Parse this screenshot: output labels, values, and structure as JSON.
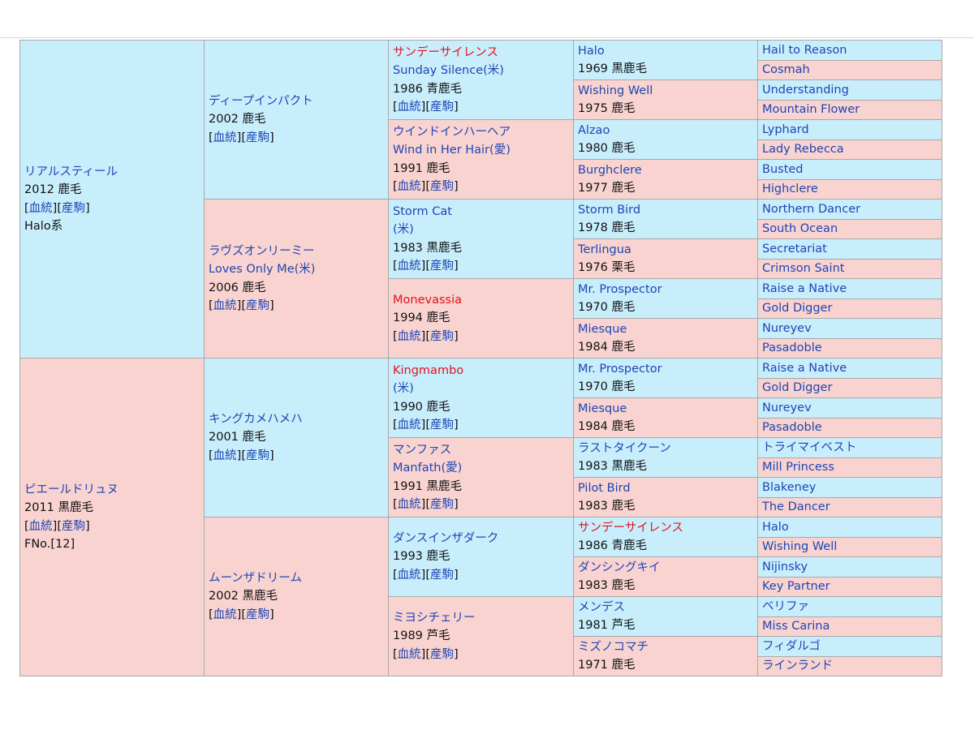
{
  "horse": {
    "sire": {
      "name": "リアルスティール",
      "year": "2012",
      "color": "鹿毛",
      "lineage": "血統",
      "offspring": "産駒",
      "line": "Halo系",
      "sire": {
        "name": "ディープインパクト",
        "year": "2002",
        "color": "鹿毛",
        "lineage": "血統",
        "offspring": "産駒",
        "sire": {
          "jp": "サンデーサイレンス",
          "en": "Sunday Silence(米)",
          "year": "1986",
          "color": "青鹿毛",
          "lineage": "血統",
          "offspring": "産駒",
          "sire": {
            "name": "Halo",
            "year": "1969",
            "color": "黒鹿毛",
            "sire": "Hail to Reason",
            "dam": "Cosmah"
          },
          "dam": {
            "name": "Wishing Well",
            "year": "1975",
            "color": "鹿毛",
            "sire": "Understanding",
            "dam": "Mountain Flower"
          }
        },
        "dam": {
          "jp": "ウインドインハーヘア",
          "en": "Wind in Her Hair(愛)",
          "year": "1991",
          "color": "鹿毛",
          "lineage": "血統",
          "offspring": "産駒",
          "sire": {
            "name": "Alzao",
            "year": "1980",
            "color": "鹿毛",
            "sire": "Lyphard",
            "dam": "Lady Rebecca"
          },
          "dam": {
            "name": "Burghclere",
            "year": "1977",
            "color": "鹿毛",
            "sire": "Busted",
            "dam": "Highclere"
          }
        }
      },
      "dam": {
        "jp": "ラヴズオンリーミー",
        "en": "Loves Only Me(米)",
        "year": "2006",
        "color": "鹿毛",
        "lineage": "血統",
        "offspring": "産駒",
        "sire": {
          "en": "Storm Cat",
          "suffix": "(米)",
          "year": "1983",
          "color": "黒鹿毛",
          "lineage": "血統",
          "offspring": "産駒",
          "sire": {
            "name": "Storm Bird",
            "year": "1978",
            "color": "鹿毛",
            "sire": "Northern Dancer",
            "dam": "South Ocean"
          },
          "dam": {
            "name": "Terlingua",
            "year": "1976",
            "color": "栗毛",
            "sire": "Secretariat",
            "dam": "Crimson Saint"
          }
        },
        "dam": {
          "en": "Monevassia",
          "year": "1994",
          "color": "鹿毛",
          "lineage": "血統",
          "offspring": "産駒",
          "sire": {
            "name": "Mr. Prospector",
            "year": "1970",
            "color": "鹿毛",
            "sire": "Raise a Native",
            "dam": "Gold Digger"
          },
          "dam": {
            "name": "Miesque",
            "year": "1984",
            "color": "鹿毛",
            "sire": "Nureyev",
            "dam": "Pasadoble"
          }
        }
      }
    },
    "dam": {
      "name": "ピエールドリュヌ",
      "year": "2011",
      "color": "黒鹿毛",
      "lineage": "血統",
      "offspring": "産駒",
      "family": "FNo.[12]",
      "sire": {
        "name": "キングカメハメハ",
        "year": "2001",
        "color": "鹿毛",
        "lineage": "血統",
        "offspring": "産駒",
        "sire": {
          "en": "Kingmambo",
          "suffix": "(米)",
          "year": "1990",
          "color": "鹿毛",
          "lineage": "血統",
          "offspring": "産駒",
          "sire": {
            "name": "Mr. Prospector",
            "year": "1970",
            "color": "鹿毛",
            "sire": "Raise a Native",
            "dam": "Gold Digger"
          },
          "dam": {
            "name": "Miesque",
            "year": "1984",
            "color": "鹿毛",
            "sire": "Nureyev",
            "dam": "Pasadoble"
          }
        },
        "dam": {
          "jp": "マンファス",
          "en": "Manfath(愛)",
          "year": "1991",
          "color": "黒鹿毛",
          "lineage": "血統",
          "offspring": "産駒",
          "sire": {
            "name": "ラストタイクーン",
            "year": "1983",
            "color": "黒鹿毛",
            "sire": "トライマイベスト",
            "dam": "Mill Princess"
          },
          "dam": {
            "name": "Pilot Bird",
            "year": "1983",
            "color": "鹿毛",
            "sire": "Blakeney",
            "dam": "The Dancer"
          }
        }
      },
      "dam": {
        "name": "ムーンザドリーム",
        "year": "2002",
        "color": "黒鹿毛",
        "lineage": "血統",
        "offspring": "産駒",
        "sire": {
          "jp": "ダンスインザダーク",
          "year": "1993",
          "color": "鹿毛",
          "lineage": "血統",
          "offspring": "産駒",
          "sire": {
            "name": "サンデーサイレンス",
            "year": "1986",
            "color": "青鹿毛",
            "sire": "Halo",
            "dam": "Wishing Well"
          },
          "dam": {
            "name": "ダンシングキイ",
            "year": "1983",
            "color": "鹿毛",
            "sire": "Nijinsky",
            "dam": "Key Partner"
          }
        },
        "dam": {
          "jp": "ミヨシチェリー",
          "year": "1989",
          "color": "芦毛",
          "lineage": "血統",
          "offspring": "産駒",
          "sire": {
            "name": "メンデス",
            "year": "1981",
            "color": "芦毛",
            "sire": "ベリファ",
            "dam": "Miss Carina"
          },
          "dam": {
            "name": "ミズノコマチ",
            "year": "1971",
            "color": "鹿毛",
            "sire": "フィダルゴ",
            "dam": "ラインランド"
          }
        }
      }
    }
  },
  "colors": {
    "male_bg": "#c8eefc",
    "female_bg": "#f9d3d0",
    "link": "#1e46b4",
    "highlight": "#e1121e",
    "border": "#a9a9a9"
  }
}
